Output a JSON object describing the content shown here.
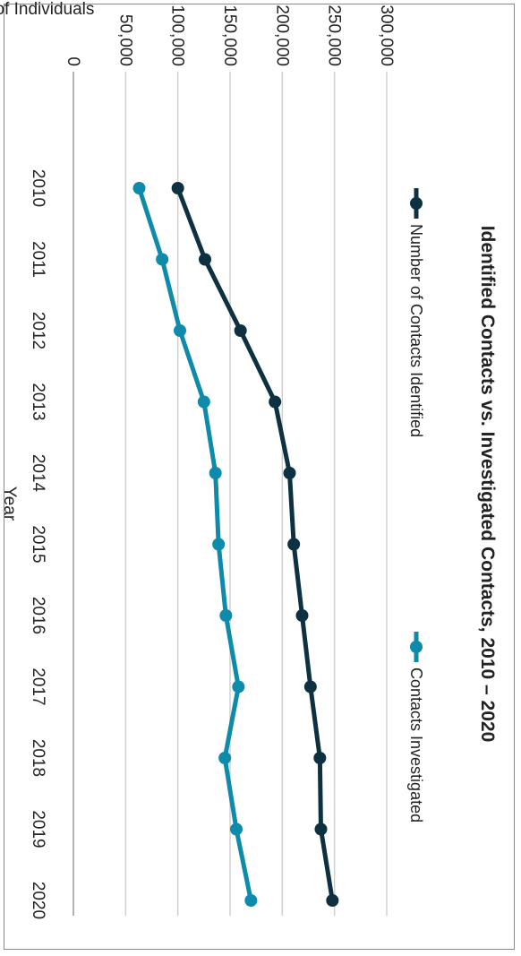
{
  "chart_data": {
    "type": "line",
    "title": "Identified Contacts vs. Investigated Contacts, 2010 – 2020",
    "xlabel": "Year",
    "ylabel": "# of Individuals",
    "categories": [
      "2010",
      "2011",
      "2012",
      "2013",
      "2014",
      "2015",
      "2016",
      "2017",
      "2018",
      "2019",
      "2020"
    ],
    "y_ticks": [
      "0",
      "50,000",
      "100,000",
      "150,000",
      "200,000",
      "250,000",
      "300,000"
    ],
    "ylim": [
      0,
      300000
    ],
    "grid": true,
    "legend_position": "top",
    "series": [
      {
        "name": "Number of Contacts Identified",
        "color": "#0d3140",
        "values": [
          100000,
          126000,
          160000,
          193000,
          207000,
          211000,
          219000,
          227000,
          236000,
          237000,
          248000
        ]
      },
      {
        "name": "Contacts Investigated",
        "color": "#0e8aaa",
        "values": [
          63000,
          85000,
          102000,
          125000,
          136000,
          139000,
          146000,
          158000,
          145000,
          156000,
          170000
        ]
      }
    ]
  }
}
